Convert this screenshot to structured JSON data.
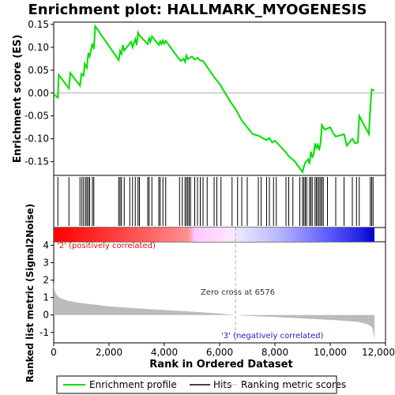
{
  "title": "Enrichment plot: HALLMARK_MYOGENESIS",
  "colors": {
    "enrichment_line": "#00e000",
    "hits": "#000000",
    "metric_fill": "#bbbbbb",
    "positive_label": "#e01010",
    "negative_label": "#2020c8",
    "zero_cross_line": "#aaaaaa"
  },
  "legend": {
    "items": [
      {
        "label": "Enrichment profile",
        "color": "#00e000"
      },
      {
        "label": "Hits",
        "color": "#000000"
      },
      {
        "label": "Ranking metric scores",
        "color": "#bbbbbb"
      }
    ]
  },
  "chart_data": [
    {
      "type": "line",
      "name": "enrichment-profile",
      "title": "Enrichment plot: HALLMARK_MYOGENESIS",
      "ylabel": "Enrichment score (ES)",
      "xlim": [
        0,
        12000
      ],
      "ylim": [
        -0.18,
        0.155
      ],
      "yticks": [
        0.15,
        0.1,
        0.05,
        0.0,
        -0.05,
        -0.1,
        -0.15
      ],
      "ytick_labels": [
        "0.15",
        "0.10",
        "0.05",
        "0.00",
        "-0.05",
        "-0.10",
        "-0.15"
      ],
      "x": [
        0,
        150,
        180,
        550,
        600,
        950,
        1000,
        1080,
        1120,
        1200,
        1250,
        1300,
        1400,
        1450,
        1500,
        2350,
        2400,
        2450,
        2500,
        2550,
        2800,
        2850,
        2950,
        3000,
        3050,
        3100,
        3400,
        3450,
        3500,
        3550,
        3800,
        3850,
        3900,
        3950,
        4000,
        4050,
        4500,
        4600,
        4700,
        4750,
        4800,
        4850,
        5000,
        5100,
        5200,
        5300,
        5400,
        5800,
        6000,
        6200,
        6400,
        6576,
        6800,
        7000,
        7200,
        7400,
        7600,
        7700,
        7800,
        7900,
        8000,
        8400,
        8500,
        8600,
        8700,
        9000,
        9050,
        9100,
        9150,
        9200,
        9250,
        9300,
        9350,
        9400,
        9450,
        9500,
        9550,
        9600,
        9650,
        9700,
        9800,
        10000,
        10100,
        10200,
        10500,
        10600,
        10800,
        10900,
        11000,
        11050,
        11400,
        11450,
        11500,
        11600
      ],
      "y": [
        -0.003,
        -0.01,
        0.04,
        0.01,
        0.044,
        0.016,
        0.042,
        0.038,
        0.064,
        0.055,
        0.088,
        0.08,
        0.108,
        0.096,
        0.146,
        0.072,
        0.092,
        0.085,
        0.105,
        0.093,
        0.112,
        0.1,
        0.118,
        0.105,
        0.132,
        0.126,
        0.107,
        0.12,
        0.112,
        0.124,
        0.105,
        0.113,
        0.107,
        0.115,
        0.108,
        0.114,
        0.077,
        0.07,
        0.075,
        0.068,
        0.082,
        0.074,
        0.08,
        0.073,
        0.077,
        0.071,
        0.07,
        0.035,
        0.02,
        0.0,
        -0.02,
        -0.035,
        -0.06,
        -0.075,
        -0.09,
        -0.093,
        -0.1,
        -0.103,
        -0.098,
        -0.108,
        -0.104,
        -0.13,
        -0.138,
        -0.143,
        -0.148,
        -0.173,
        -0.16,
        -0.152,
        -0.148,
        -0.145,
        -0.155,
        -0.128,
        -0.14,
        -0.135,
        -0.11,
        -0.12,
        -0.113,
        -0.125,
        -0.108,
        -0.07,
        -0.08,
        -0.075,
        -0.087,
        -0.095,
        -0.09,
        -0.115,
        -0.1,
        -0.11,
        -0.108,
        -0.05,
        -0.09,
        -0.03,
        0.008,
        0.005
      ]
    },
    {
      "type": "scatter",
      "name": "hits",
      "description": "Hit positions in ranked list",
      "x": [
        150,
        550,
        950,
        1020,
        1080,
        1150,
        1200,
        1250,
        1300,
        1400,
        1450,
        2350,
        2400,
        2450,
        2550,
        2750,
        2850,
        2950,
        3050,
        3100,
        3400,
        3450,
        3550,
        3800,
        3850,
        3950,
        4050,
        4550,
        4650,
        4750,
        4800,
        4850,
        4900,
        4950,
        5100,
        5200,
        5300,
        5400,
        5550,
        5800,
        5900,
        6050,
        6450,
        6650,
        6800,
        7000,
        7400,
        7500,
        7700,
        7800,
        7950,
        8050,
        8400,
        8500,
        8650,
        8900,
        9000,
        9050,
        9100,
        9150,
        9250,
        9300,
        9350,
        9450,
        9500,
        9550,
        9600,
        9650,
        9700,
        9750,
        9900,
        10200,
        10500,
        10800,
        10950,
        11050,
        11450,
        11500,
        11550
      ]
    },
    {
      "type": "area",
      "name": "ranked-list-metric",
      "ylabel": "Ranked list metric (Signal2Noise)",
      "xlabel": "Rank in Ordered Dataset",
      "xlim": [
        0,
        12000
      ],
      "ylim": [
        -1.6,
        4.2
      ],
      "yticks": [
        4,
        3,
        2,
        1,
        0,
        -1
      ],
      "ytick_labels": [
        "4",
        "3",
        "2",
        "1",
        "0",
        "-1"
      ],
      "xticks": [
        0,
        2000,
        4000,
        6000,
        8000,
        10000,
        12000
      ],
      "xtick_labels": [
        "0",
        "2,000",
        "4,000",
        "6,000",
        "8,000",
        "10,000",
        "12,000"
      ],
      "x": [
        0,
        20,
        60,
        120,
        250,
        500,
        1000,
        2000,
        3000,
        4000,
        5000,
        6000,
        6576,
        7000,
        8000,
        9000,
        10000,
        10500,
        11000,
        11300,
        11450,
        11520,
        11560,
        11600
      ],
      "y": [
        1.95,
        1.55,
        1.3,
        1.12,
        0.95,
        0.82,
        0.68,
        0.5,
        0.38,
        0.28,
        0.19,
        0.08,
        0.0,
        -0.05,
        -0.12,
        -0.2,
        -0.28,
        -0.33,
        -0.4,
        -0.5,
        -0.62,
        -0.75,
        -1.0,
        -1.45
      ],
      "annotations": {
        "positive": "'2' (positively correlated)",
        "negative": "'3' (negatively correlated)",
        "zero_cross": "Zero cross at 6576"
      },
      "zero_cross_rank": 6576
    }
  ]
}
